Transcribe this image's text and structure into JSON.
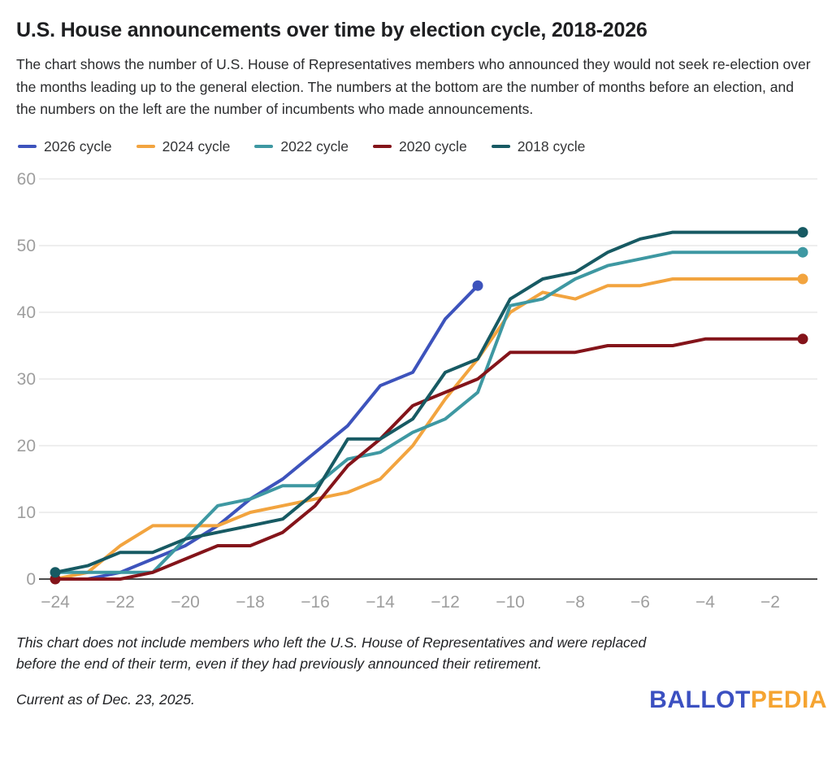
{
  "header": {
    "title": "U.S. House announcements over time by election cycle, 2018-2026",
    "subtitle": "The chart shows the number of U.S. House of Representatives members who announced they would not seek re-election over the months leading up to the general election. The numbers at the bottom are the number of months before an election, and the numbers on the left are the number of incumbents who made announcements."
  },
  "chart_data": {
    "type": "line",
    "title": "U.S. House announcements over time by election cycle, 2018-2026",
    "xlabel": "months before an election",
    "ylabel": "number of incumbents who made announcements",
    "x": [
      -24,
      -23,
      -22,
      -21,
      -20,
      -19,
      -18,
      -17,
      -16,
      -15,
      -14,
      -13,
      -12,
      -11,
      -10,
      -9,
      -8,
      -7,
      -6,
      -5,
      -4,
      -3,
      -2,
      -1
    ],
    "x_ticks": [
      -24,
      -22,
      -20,
      -18,
      -16,
      -14,
      -12,
      -10,
      -8,
      -6,
      -4,
      -2
    ],
    "x_tick_labels": [
      "−24",
      "−22",
      "−20",
      "−18",
      "−16",
      "−14",
      "−12",
      "−10",
      "−8",
      "−6",
      "−4",
      "−2"
    ],
    "y_ticks": [
      0,
      10,
      20,
      30,
      40,
      50,
      60
    ],
    "y_tick_labels": [
      "0",
      "10",
      "20",
      "30",
      "40",
      "50",
      "60"
    ],
    "ylim": [
      0,
      60
    ],
    "grid": true,
    "legend_position": "top",
    "colors": {
      "grid": "#e8e8e8",
      "axis_line": "#4d4d4d",
      "tick_text": "#9e9e9e"
    },
    "series": [
      {
        "name": "2026 cycle",
        "color": "#3d53bc",
        "start_dot": false,
        "end_dot": true,
        "values": [
          0,
          0,
          1,
          3,
          5,
          8,
          12,
          15,
          19,
          23,
          29,
          31,
          39,
          44
        ]
      },
      {
        "name": "2024 cycle",
        "color": "#f2a43f",
        "start_dot": false,
        "end_dot": true,
        "values": [
          0,
          1,
          5,
          8,
          8,
          8,
          10,
          11,
          12,
          13,
          15,
          20,
          27,
          33,
          40,
          43,
          42,
          44,
          44,
          45,
          45,
          45,
          45,
          45
        ]
      },
      {
        "name": "2022 cycle",
        "color": "#3e98a2",
        "start_dot": false,
        "end_dot": true,
        "values": [
          1,
          1,
          1,
          1,
          6,
          11,
          12,
          14,
          14,
          18,
          19,
          22,
          24,
          28,
          41,
          42,
          45,
          47,
          48,
          49,
          49,
          49,
          49,
          49
        ]
      },
      {
        "name": "2020 cycle",
        "color": "#84141a",
        "start_dot": true,
        "end_dot": true,
        "values": [
          0,
          0,
          0,
          1,
          3,
          5,
          5,
          7,
          11,
          17,
          21,
          26,
          28,
          30,
          34,
          34,
          34,
          35,
          35,
          35,
          36,
          36,
          36,
          36
        ]
      },
      {
        "name": "2018 cycle",
        "color": "#175a63",
        "start_dot": true,
        "end_dot": true,
        "values": [
          1,
          2,
          4,
          4,
          6,
          7,
          8,
          9,
          13,
          21,
          21,
          24,
          31,
          33,
          42,
          45,
          46,
          49,
          51,
          52,
          52,
          52,
          52,
          52
        ]
      }
    ]
  },
  "footnote": "This chart does not include members who left the U.S. House of Representatives and were replaced before the end of their term, even if they had previously announced their retirement.",
  "footer": {
    "current_as_of": "Current as of Dec. 23, 2025.",
    "logo": {
      "text_primary": "BALLOT",
      "text_secondary": "PEDIA",
      "color_primary": "#3b50c1",
      "color_secondary": "#f5a431"
    }
  }
}
